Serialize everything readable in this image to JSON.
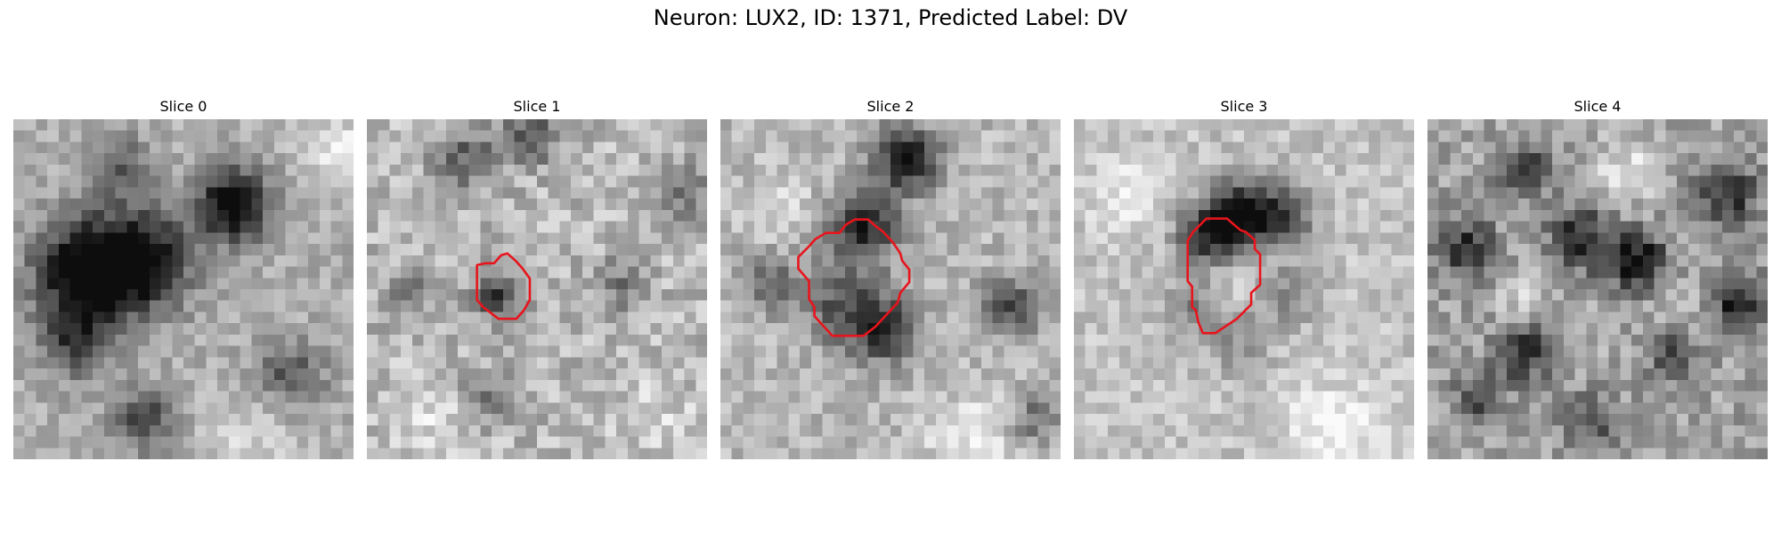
{
  "figure": {
    "title": "Neuron: LUX2, ID: 1371, Predicted Label: DV"
  },
  "panels": [
    {
      "title": "Slice 0",
      "has_contour": false
    },
    {
      "title": "Slice 1",
      "has_contour": true
    },
    {
      "title": "Slice 2",
      "has_contour": true
    },
    {
      "title": "Slice 3",
      "has_contour": true
    },
    {
      "title": "Slice 4",
      "has_contour": false
    }
  ],
  "colors": {
    "contour": "#e8141c",
    "background": "#ffffff"
  },
  "colormap": "grayscale"
}
